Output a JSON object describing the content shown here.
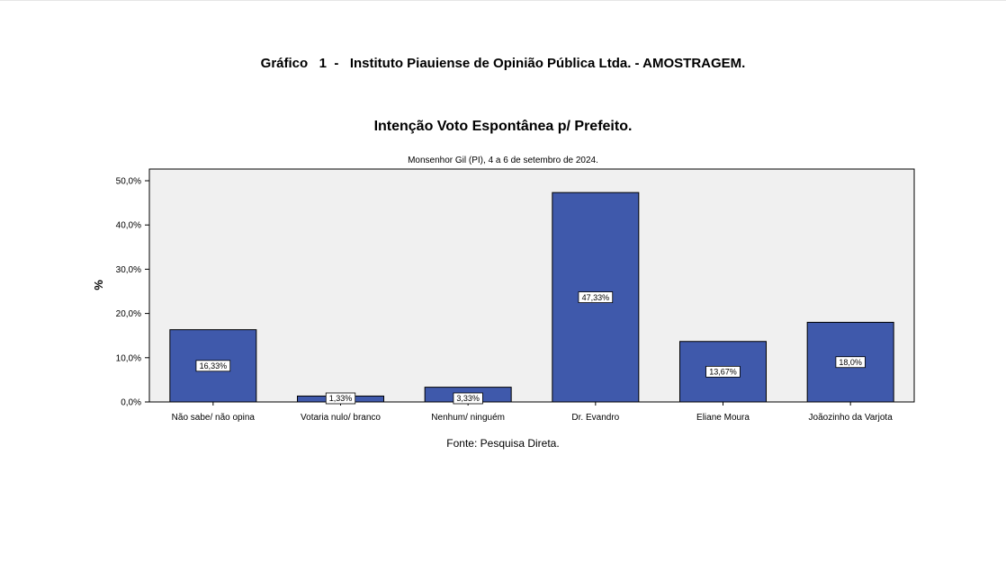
{
  "document": {
    "heading": "Gráfico   1  -   Instituto Piauiense de Opinião Pública Ltda. - AMOSTRAGEM.",
    "source": "Fonte: Pesquisa Direta."
  },
  "chart_data": {
    "type": "bar",
    "title": "Intenção Voto Espontânea p/ Prefeito.",
    "subtitle": "Monsenhor Gil (PI), 4 a 6 de setembro de 2024.",
    "xlabel": "",
    "ylabel": "%",
    "ylim": [
      0,
      50
    ],
    "yticks": [
      0,
      10,
      20,
      30,
      40,
      50
    ],
    "ytick_labels": [
      "0,0%",
      "10,0%",
      "20,0%",
      "30,0%",
      "40,0%",
      "50,0%"
    ],
    "grid": false,
    "categories": [
      "Não sabe/ não opina",
      "Votaria nulo/ branco",
      "Nenhum/ ninguém",
      "Dr. Evandro",
      "Eliane Moura",
      "Joãozinho da Varjota"
    ],
    "values": [
      16.33,
      1.33,
      3.33,
      47.33,
      13.67,
      18.0
    ],
    "data_labels": [
      "16,33%",
      "1,33%",
      "3,33%",
      "47,33%",
      "13,67%",
      "18,0%"
    ],
    "colors": {
      "bar": "#3f59ab",
      "plot_background": "#f0f0f0",
      "label_box": "#ffffff"
    }
  }
}
